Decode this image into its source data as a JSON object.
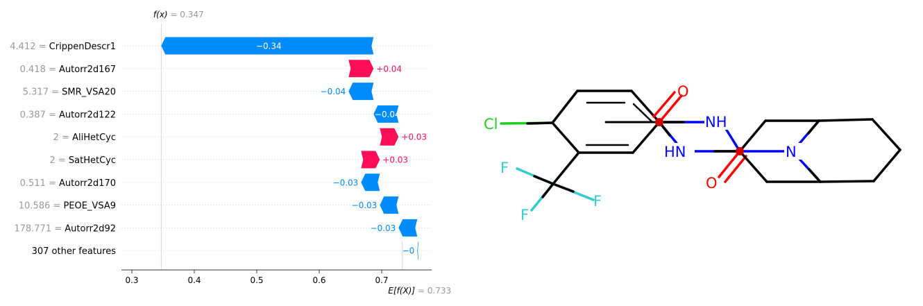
{
  "chart_data": {
    "type": "waterfall",
    "fx_label": "f(x)",
    "fx_value": "= 0.347",
    "ex_label": "E[f(X)]",
    "ex_value": "= 0.733",
    "base_value": 0.733,
    "output_value": 0.347,
    "xlim": [
      0.28,
      0.77
    ],
    "xticks": [
      0.3,
      0.4,
      0.5,
      0.6,
      0.7
    ],
    "xtick_labels": [
      "0.3",
      "0.4",
      "0.5",
      "0.6",
      "0.7"
    ],
    "colors": {
      "positive": "#ff0d57",
      "negative": "#008bfb",
      "label_grey": "#999999"
    },
    "features": [
      {
        "value_text": "4.412",
        "name": "CrippenDescr1",
        "contribution": -0.34,
        "label": "−0.34"
      },
      {
        "value_text": "0.418",
        "name": "Autorr2d167",
        "contribution": 0.04,
        "label": "+0.04"
      },
      {
        "value_text": "5.317",
        "name": "SMR_VSA20",
        "contribution": -0.04,
        "label": "−0.04"
      },
      {
        "value_text": "0.387",
        "name": "Autorr2d122",
        "contribution": -0.04,
        "label": "−0.04"
      },
      {
        "value_text": "2",
        "name": "AliHetCyc",
        "contribution": 0.03,
        "label": "+0.03"
      },
      {
        "value_text": "2",
        "name": "SatHetCyc",
        "contribution": 0.03,
        "label": "+0.03"
      },
      {
        "value_text": "0.511",
        "name": "Autorr2d170",
        "contribution": -0.03,
        "label": "−0.03"
      },
      {
        "value_text": "10.586",
        "name": "PEOE_VSA9",
        "contribution": -0.03,
        "label": "−0.03"
      },
      {
        "value_text": "178.771",
        "name": "Autorr2d92",
        "contribution": -0.03,
        "label": "−0.03"
      },
      {
        "value_text": "",
        "name": "307 other features",
        "contribution": -0.002,
        "label": "−0"
      }
    ]
  },
  "molecule": {
    "atoms": {
      "cl": "Cl",
      "f1": "F",
      "f2": "F",
      "f3": "F",
      "o1": "O",
      "o2": "O",
      "nh": "NH",
      "hn": "HN",
      "n": "N"
    },
    "colors": {
      "cl": "#22cc22",
      "f": "#33cccc",
      "o": "#ff0000",
      "n": "#0000ff",
      "bond": "#000000"
    }
  }
}
